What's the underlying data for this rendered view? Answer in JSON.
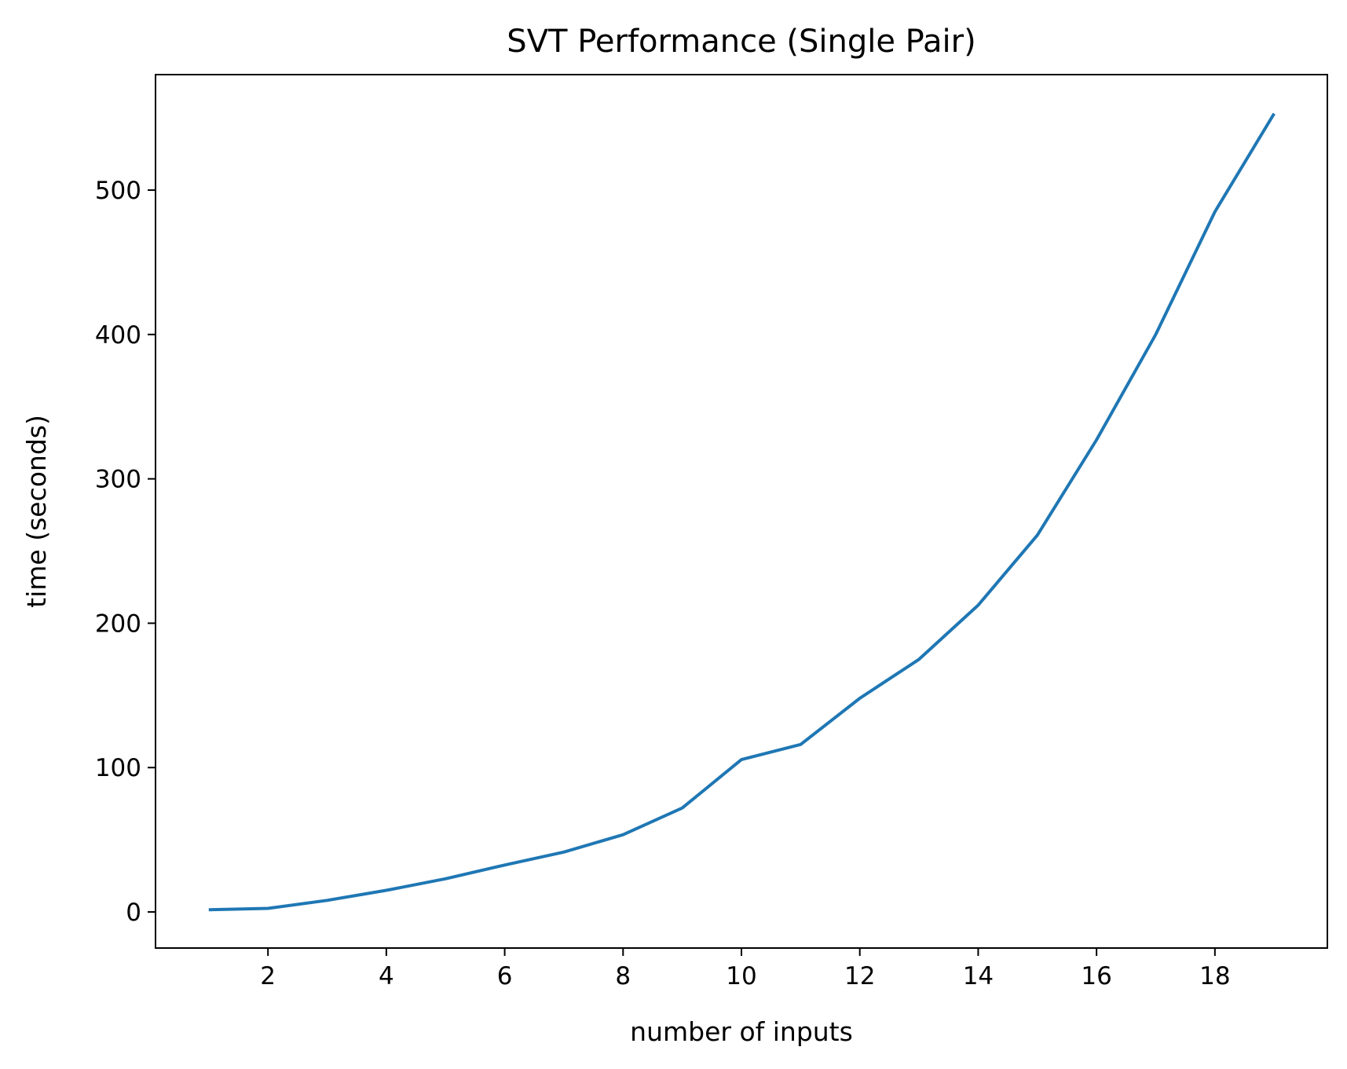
{
  "chart_data": {
    "type": "line",
    "title": "SVT Performance (Single Pair)",
    "xlabel": "number of inputs",
    "ylabel": "time (seconds)",
    "xlim": [
      0.1,
      19.9
    ],
    "ylim": [
      -25,
      580
    ],
    "xticks": [
      2,
      4,
      6,
      8,
      10,
      12,
      14,
      16,
      18
    ],
    "yticks": [
      0,
      100,
      200,
      300,
      400,
      500
    ],
    "grid": false,
    "legend": "none",
    "series": [
      {
        "color": "#1f77b4",
        "x": [
          1,
          2,
          3,
          4,
          5,
          6,
          7,
          8,
          9,
          10,
          11,
          12,
          13,
          14,
          15,
          16,
          17,
          18,
          19
        ],
        "y": [
          1.5,
          2.5,
          8,
          15,
          23,
          32.5,
          41.5,
          53.5,
          72,
          105.5,
          116,
          148,
          175,
          212.5,
          261,
          327,
          400,
          485,
          553
        ]
      }
    ]
  }
}
